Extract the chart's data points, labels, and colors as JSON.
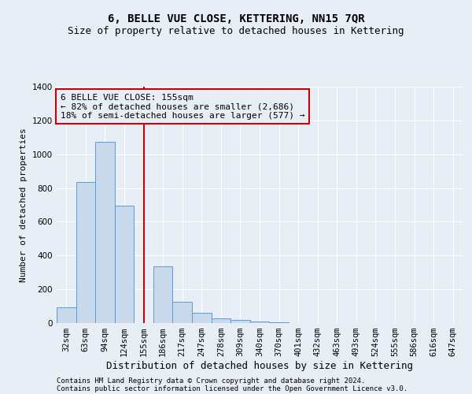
{
  "title": "6, BELLE VUE CLOSE, KETTERING, NN15 7QR",
  "subtitle": "Size of property relative to detached houses in Kettering",
  "xlabel": "Distribution of detached houses by size in Kettering",
  "ylabel": "Number of detached properties",
  "categories": [
    "32sqm",
    "63sqm",
    "94sqm",
    "124sqm",
    "155sqm",
    "186sqm",
    "217sqm",
    "247sqm",
    "278sqm",
    "309sqm",
    "340sqm",
    "370sqm",
    "401sqm",
    "432sqm",
    "463sqm",
    "493sqm",
    "524sqm",
    "555sqm",
    "586sqm",
    "616sqm",
    "647sqm"
  ],
  "values": [
    95,
    835,
    1075,
    695,
    0,
    335,
    125,
    60,
    28,
    18,
    10,
    5,
    2,
    1,
    0,
    0,
    0,
    0,
    0,
    0,
    0
  ],
  "bar_color": "#c9d9ec",
  "bar_edge_color": "#5b9bd5",
  "ref_line_idx": 4,
  "ref_line_color": "#cc0000",
  "annotation_text": "6 BELLE VUE CLOSE: 155sqm\n← 82% of detached houses are smaller (2,686)\n18% of semi-detached houses are larger (577) →",
  "annotation_box_color": "#cc0000",
  "ylim": [
    0,
    1400
  ],
  "yticks": [
    0,
    200,
    400,
    600,
    800,
    1000,
    1200,
    1400
  ],
  "background_color": "#e8eef6",
  "grid_color": "#ffffff",
  "footer_line1": "Contains HM Land Registry data © Crown copyright and database right 2024.",
  "footer_line2": "Contains public sector information licensed under the Open Government Licence v3.0.",
  "title_fontsize": 10,
  "subtitle_fontsize": 9,
  "annotation_fontsize": 8,
  "ylabel_fontsize": 8,
  "xlabel_fontsize": 9,
  "tick_fontsize": 7.5,
  "footer_fontsize": 6.5
}
